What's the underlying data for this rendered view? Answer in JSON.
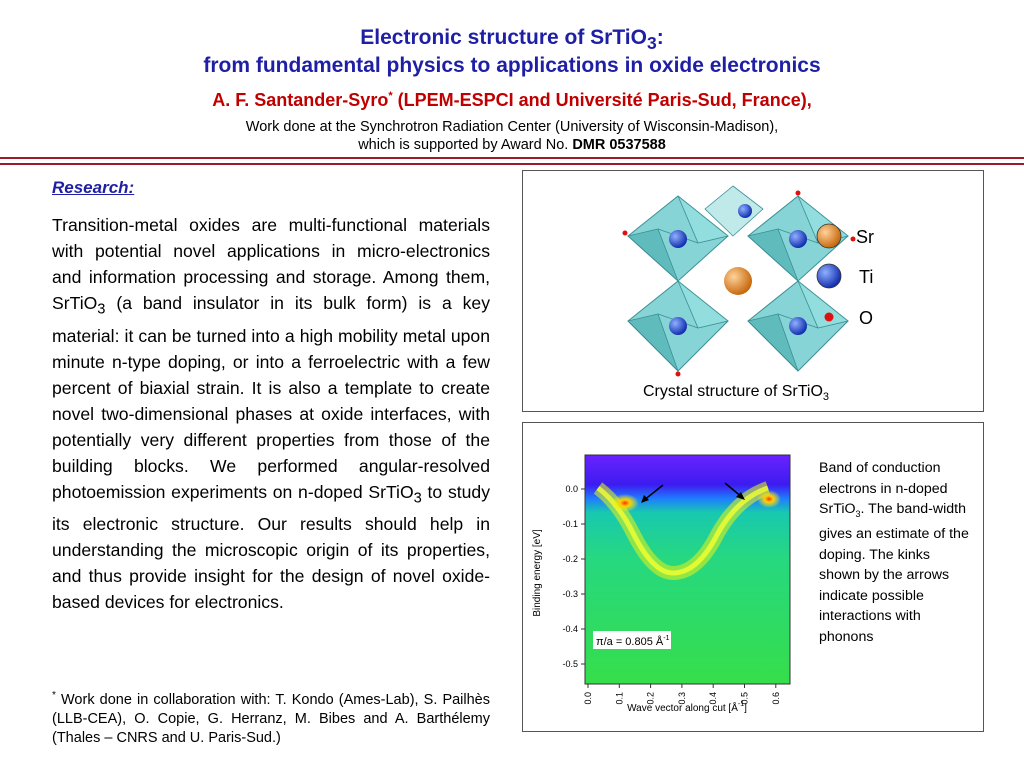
{
  "title": {
    "line1": "Electronic structure of SrTiO",
    "line1_sub": "3",
    "line1_end": ":",
    "line2": "from fundamental physics to applications in oxide electronics"
  },
  "author": {
    "name": "A. F. Santander-Syro",
    "mark": "*",
    "affil": " (LPEM-ESPCI and Université Paris-Sud, France),"
  },
  "work": {
    "line1": "Work done at the Synchrotron Radiation Center (University of Wisconsin-Madison),",
    "line2": "which is  supported by Award No. ",
    "award": "DMR 0537588"
  },
  "research": {
    "heading": "Research:",
    "p_a": "Transition-metal oxides are multi-functional materials with potential novel applications in micro-electronics and information processing and storage. Among them, SrTiO",
    "p_a_sub": "3",
    "p_b": " (a band insulator in its bulk form) is a key material: it can be turned into a high mobility metal upon minute n-type doping, or into a ferroelectric with a few percent of biaxial strain. It is also a template to create novel two-dimensional phases at oxide interfaces, with potentially very different properties from those of the building blocks. We performed angular-resolved photoemission experiments on n-doped SrTiO",
    "p_b_sub": "3",
    "p_c": " to study its electronic structure. Our results should help in understanding the microscopic origin of its properties, and thus provide insight for the design of novel oxide-based devices for electronics."
  },
  "footnote": {
    "mark": "*",
    "text": " Work done in collaboration with: T. Kondo (Ames-Lab), S. Pailhès (LLB-CEA), O. Copie, G. Herranz, M. Bibes and A. Barthélemy (Thales – CNRS and U. Paris-Sud.)"
  },
  "crystal": {
    "legend": [
      {
        "label": "Sr",
        "color": "#e08a2a"
      },
      {
        "label": "Ti",
        "color": "#1f3fe0"
      },
      {
        "label": "O",
        "color": "#e01010"
      }
    ],
    "caption": "Crystal structure of SrTiO",
    "caption_sub": "3"
  },
  "arpes": {
    "ylabel": "Binding energy [eV]",
    "xlabel_pre": "Wave vector along cut [Å",
    "xlabel_sup": "-1",
    "xlabel_post": "]",
    "yticks": [
      "0.0",
      "-0.1",
      "-0.2",
      "-0.3",
      "-0.4",
      "-0.5"
    ],
    "xticks": [
      "0.0",
      "0.1",
      "0.2",
      "0.3",
      "0.4",
      "0.5",
      "0.6"
    ],
    "annotation_pre": "π/a = 0.805 Å",
    "annotation_sup": "-1",
    "side_pre": "Band of conduction electrons in n-doped SrTiO",
    "side_sub": "3",
    "side_post": ". The band-width gives an estimate of the doping. The kinks shown by the arrows indicate possible interactions with phonons"
  }
}
